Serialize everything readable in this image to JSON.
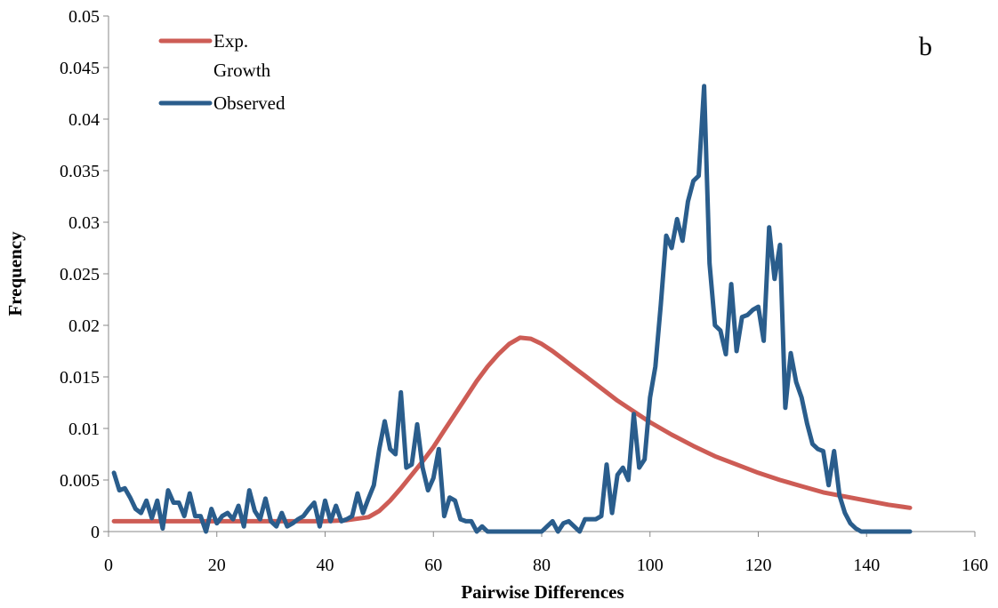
{
  "chart_data": {
    "type": "line",
    "title": "",
    "panel_label": "b",
    "xlabel": "Pairwise Differences",
    "ylabel": "Frequency",
    "xlim": [
      0,
      160
    ],
    "ylim": [
      0,
      0.05
    ],
    "x_ticks": [
      0,
      20,
      40,
      60,
      80,
      100,
      120,
      140,
      160
    ],
    "x_tick_labels": [
      "0",
      "20",
      "40",
      "60",
      "80",
      "100",
      "120",
      "140",
      "160"
    ],
    "y_ticks": [
      0,
      0.005,
      0.01,
      0.015,
      0.02,
      0.025,
      0.03,
      0.035,
      0.04,
      0.045,
      0.05
    ],
    "y_tick_labels": [
      "0",
      "0.005",
      "0.01",
      "0.015",
      "0.02",
      "0.025",
      "0.03",
      "0.035",
      "0.04",
      "0.045",
      "0.05"
    ],
    "grid": false,
    "legend_position": "top-left",
    "series": [
      {
        "name": "Exp. Growth",
        "legend_lines": [
          "Exp.",
          "Growth"
        ],
        "color": "#cd5c55",
        "points": [
          [
            1,
            0.001
          ],
          [
            10,
            0.001
          ],
          [
            20,
            0.001
          ],
          [
            30,
            0.001
          ],
          [
            40,
            0.001
          ],
          [
            44,
            0.0011
          ],
          [
            48,
            0.0014
          ],
          [
            50,
            0.002
          ],
          [
            52,
            0.003
          ],
          [
            54,
            0.0042
          ],
          [
            56,
            0.0055
          ],
          [
            58,
            0.0068
          ],
          [
            60,
            0.0082
          ],
          [
            62,
            0.0098
          ],
          [
            64,
            0.0114
          ],
          [
            66,
            0.013
          ],
          [
            68,
            0.0146
          ],
          [
            70,
            0.016
          ],
          [
            72,
            0.0172
          ],
          [
            74,
            0.0182
          ],
          [
            76,
            0.0188
          ],
          [
            78,
            0.0187
          ],
          [
            80,
            0.0182
          ],
          [
            82,
            0.0175
          ],
          [
            84,
            0.0167
          ],
          [
            86,
            0.0159
          ],
          [
            88,
            0.0151
          ],
          [
            90,
            0.0143
          ],
          [
            92,
            0.0135
          ],
          [
            94,
            0.0127
          ],
          [
            96,
            0.012
          ],
          [
            100,
            0.0106
          ],
          [
            104,
            0.0094
          ],
          [
            108,
            0.0083
          ],
          [
            112,
            0.0073
          ],
          [
            116,
            0.0065
          ],
          [
            120,
            0.0057
          ],
          [
            124,
            0.005
          ],
          [
            128,
            0.0044
          ],
          [
            132,
            0.0038
          ],
          [
            136,
            0.0034
          ],
          [
            140,
            0.003
          ],
          [
            144,
            0.0026
          ],
          [
            148,
            0.0023
          ]
        ]
      },
      {
        "name": "Observed",
        "legend_lines": [
          "Observed"
        ],
        "color": "#2a5d8c",
        "points": [
          [
            1,
            0.0057
          ],
          [
            2,
            0.004
          ],
          [
            3,
            0.0042
          ],
          [
            4,
            0.0033
          ],
          [
            5,
            0.0022
          ],
          [
            6,
            0.0018
          ],
          [
            7,
            0.003
          ],
          [
            8,
            0.0013
          ],
          [
            9,
            0.003
          ],
          [
            10,
            0.0003
          ],
          [
            11,
            0.004
          ],
          [
            12,
            0.0028
          ],
          [
            13,
            0.0028
          ],
          [
            14,
            0.0015
          ],
          [
            15,
            0.0037
          ],
          [
            16,
            0.0015
          ],
          [
            17,
            0.0015
          ],
          [
            18,
            0.0
          ],
          [
            19,
            0.0022
          ],
          [
            20,
            0.0008
          ],
          [
            21,
            0.0015
          ],
          [
            22,
            0.0018
          ],
          [
            23,
            0.0012
          ],
          [
            24,
            0.0025
          ],
          [
            25,
            0.0005
          ],
          [
            26,
            0.004
          ],
          [
            27,
            0.002
          ],
          [
            28,
            0.0012
          ],
          [
            29,
            0.0032
          ],
          [
            30,
            0.001
          ],
          [
            31,
            0.0005
          ],
          [
            32,
            0.0018
          ],
          [
            33,
            0.0005
          ],
          [
            34,
            0.0008
          ],
          [
            35,
            0.0012
          ],
          [
            36,
            0.0015
          ],
          [
            37,
            0.0022
          ],
          [
            38,
            0.0028
          ],
          [
            39,
            0.0005
          ],
          [
            40,
            0.003
          ],
          [
            41,
            0.001
          ],
          [
            42,
            0.0025
          ],
          [
            43,
            0.001
          ],
          [
            44,
            0.0012
          ],
          [
            45,
            0.0015
          ],
          [
            46,
            0.0037
          ],
          [
            47,
            0.0018
          ],
          [
            48,
            0.0032
          ],
          [
            49,
            0.0045
          ],
          [
            50,
            0.008
          ],
          [
            51,
            0.0107
          ],
          [
            52,
            0.008
          ],
          [
            53,
            0.0075
          ],
          [
            54,
            0.0135
          ],
          [
            55,
            0.0062
          ],
          [
            56,
            0.0065
          ],
          [
            57,
            0.0104
          ],
          [
            58,
            0.0062
          ],
          [
            59,
            0.004
          ],
          [
            60,
            0.0052
          ],
          [
            61,
            0.008
          ],
          [
            62,
            0.0015
          ],
          [
            63,
            0.0033
          ],
          [
            64,
            0.003
          ],
          [
            65,
            0.0012
          ],
          [
            66,
            0.001
          ],
          [
            67,
            0.001
          ],
          [
            68,
            0.0
          ],
          [
            69,
            0.0005
          ],
          [
            70,
            0.0
          ],
          [
            75,
            0.0
          ],
          [
            80,
            0.0
          ],
          [
            81,
            0.0005
          ],
          [
            82,
            0.001
          ],
          [
            83,
            0.0
          ],
          [
            84,
            0.0008
          ],
          [
            85,
            0.001
          ],
          [
            86,
            0.0005
          ],
          [
            87,
            0.0
          ],
          [
            88,
            0.0012
          ],
          [
            89,
            0.0012
          ],
          [
            90,
            0.0012
          ],
          [
            91,
            0.0015
          ],
          [
            92,
            0.0065
          ],
          [
            93,
            0.0018
          ],
          [
            94,
            0.0055
          ],
          [
            95,
            0.0062
          ],
          [
            96,
            0.005
          ],
          [
            97,
            0.0114
          ],
          [
            98,
            0.0062
          ],
          [
            99,
            0.007
          ],
          [
            100,
            0.013
          ],
          [
            101,
            0.016
          ],
          [
            102,
            0.022
          ],
          [
            103,
            0.0287
          ],
          [
            104,
            0.0275
          ],
          [
            105,
            0.0303
          ],
          [
            106,
            0.0282
          ],
          [
            107,
            0.032
          ],
          [
            108,
            0.034
          ],
          [
            109,
            0.0345
          ],
          [
            110,
            0.0432
          ],
          [
            111,
            0.026
          ],
          [
            112,
            0.02
          ],
          [
            113,
            0.0195
          ],
          [
            114,
            0.0172
          ],
          [
            115,
            0.024
          ],
          [
            116,
            0.0175
          ],
          [
            117,
            0.0208
          ],
          [
            118,
            0.021
          ],
          [
            119,
            0.0215
          ],
          [
            120,
            0.0218
          ],
          [
            121,
            0.0185
          ],
          [
            122,
            0.0295
          ],
          [
            123,
            0.0245
          ],
          [
            124,
            0.0278
          ],
          [
            125,
            0.012
          ],
          [
            126,
            0.0173
          ],
          [
            127,
            0.0145
          ],
          [
            128,
            0.013
          ],
          [
            129,
            0.0105
          ],
          [
            130,
            0.0085
          ],
          [
            131,
            0.008
          ],
          [
            132,
            0.0078
          ],
          [
            133,
            0.0045
          ],
          [
            134,
            0.0078
          ],
          [
            135,
            0.0035
          ],
          [
            136,
            0.0018
          ],
          [
            137,
            0.0008
          ],
          [
            138,
            0.0003
          ],
          [
            139,
            0.0
          ],
          [
            148,
            0.0
          ]
        ]
      }
    ]
  }
}
